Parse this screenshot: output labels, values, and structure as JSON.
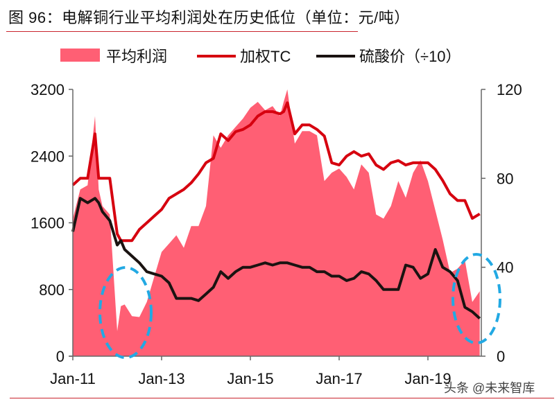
{
  "title": "图 96：电解铜行业平均利润处在历史低位（单位：元/吨）",
  "watermark": "头条 @未来智库",
  "colors": {
    "area": "#ff5f74",
    "tc_line": "#d6000f",
    "acid_line": "#1a1311",
    "ellipse": "#22a9e3",
    "rule": "#c9232c"
  },
  "chart_data": {
    "type": "area+line",
    "title": "电解铜行业平均利润处在历史低位（单位：元/吨）",
    "legend": [
      {
        "label": "平均利润",
        "type": "area",
        "color": "#ff5f74",
        "axis": "left"
      },
      {
        "label": "加权TC",
        "type": "line",
        "color": "#d6000f",
        "axis": "right"
      },
      {
        "label": "硫酸价（÷10）",
        "type": "line",
        "color": "#1a1311",
        "axis": "right"
      }
    ],
    "legend_position": "top",
    "x_ticks": [
      "Jan-11",
      "Jan-13",
      "Jan-15",
      "Jan-17",
      "Jan-19"
    ],
    "y_left": {
      "ticks": [
        "0",
        "800",
        "1600",
        "2400",
        "3200"
      ],
      "range": [
        0,
        3200
      ]
    },
    "y_right": {
      "ticks": [
        "0",
        "40",
        "80",
        "120"
      ],
      "range": [
        0,
        120
      ]
    },
    "grid": false,
    "x": [
      "2011-01",
      "2011-03",
      "2011-05",
      "2011-07",
      "2011-08",
      "2011-09",
      "2011-11",
      "2012-01",
      "2012-02",
      "2012-03",
      "2012-05",
      "2012-07",
      "2012-09",
      "2012-11",
      "2013-01",
      "2013-03",
      "2013-05",
      "2013-07",
      "2013-09",
      "2013-11",
      "2014-01",
      "2014-03",
      "2014-05",
      "2014-07",
      "2014-09",
      "2014-11",
      "2015-01",
      "2015-03",
      "2015-05",
      "2015-07",
      "2015-09",
      "2015-10",
      "2015-11",
      "2016-01",
      "2016-03",
      "2016-05",
      "2016-07",
      "2016-09",
      "2016-11",
      "2017-01",
      "2017-03",
      "2017-05",
      "2017-07",
      "2017-09",
      "2017-11",
      "2018-01",
      "2018-03",
      "2018-05",
      "2018-07",
      "2018-09",
      "2018-11",
      "2019-01",
      "2019-03",
      "2019-05",
      "2019-07",
      "2019-09",
      "2019-11",
      "2020-01",
      "2020-03"
    ],
    "series": [
      {
        "name": "平均利润",
        "axis": "left",
        "values": [
          1650,
          2000,
          2050,
          2880,
          2000,
          1800,
          1700,
          300,
          600,
          620,
          480,
          470,
          650,
          950,
          1250,
          1350,
          1450,
          1300,
          1560,
          1560,
          1800,
          2650,
          2500,
          2650,
          2750,
          2850,
          2980,
          3050,
          2950,
          3000,
          2880,
          3050,
          3200,
          2550,
          2700,
          2700,
          2650,
          2100,
          2200,
          2250,
          2150,
          2000,
          2300,
          2200,
          1700,
          1650,
          1800,
          2100,
          1900,
          2200,
          2350,
          2100,
          1750,
          1400,
          1000,
          1050,
          1150,
          650,
          780
        ]
      },
      {
        "name": "加权TC",
        "axis": "right",
        "values": [
          77,
          80,
          80,
          100,
          80,
          80,
          80,
          55,
          52,
          52,
          52,
          57,
          60,
          63,
          66,
          71,
          73,
          75,
          78,
          82,
          87,
          89,
          100,
          97,
          101,
          102,
          104,
          108,
          110,
          110,
          109,
          110,
          114,
          100,
          104,
          104,
          102,
          99,
          87,
          86,
          90,
          92,
          90,
          91,
          86,
          84,
          87,
          88,
          86,
          87,
          87,
          87,
          84,
          79,
          73,
          70,
          70,
          62,
          64
        ]
      },
      {
        "name": "硫酸价（÷10）",
        "axis": "right",
        "values": [
          56,
          71,
          69,
          71,
          69,
          65,
          61,
          50,
          52,
          48,
          45,
          42,
          38,
          37,
          36,
          33,
          26,
          26,
          26,
          25,
          28,
          31,
          38,
          35,
          38,
          40,
          40,
          41,
          42,
          41,
          42,
          42,
          42,
          41,
          40,
          40,
          38,
          38,
          36,
          36,
          34,
          35,
          38,
          37,
          34,
          30,
          30,
          30,
          41,
          40,
          35,
          37,
          48,
          40,
          38,
          34,
          22,
          20,
          17
        ]
      }
    ],
    "annotations": [
      {
        "type": "dashed-ellipse",
        "around": "2012 profit trough",
        "color": "#22a9e3"
      },
      {
        "type": "dashed-ellipse",
        "around": "2019-2020 profit trough",
        "color": "#22a9e3"
      }
    ]
  }
}
